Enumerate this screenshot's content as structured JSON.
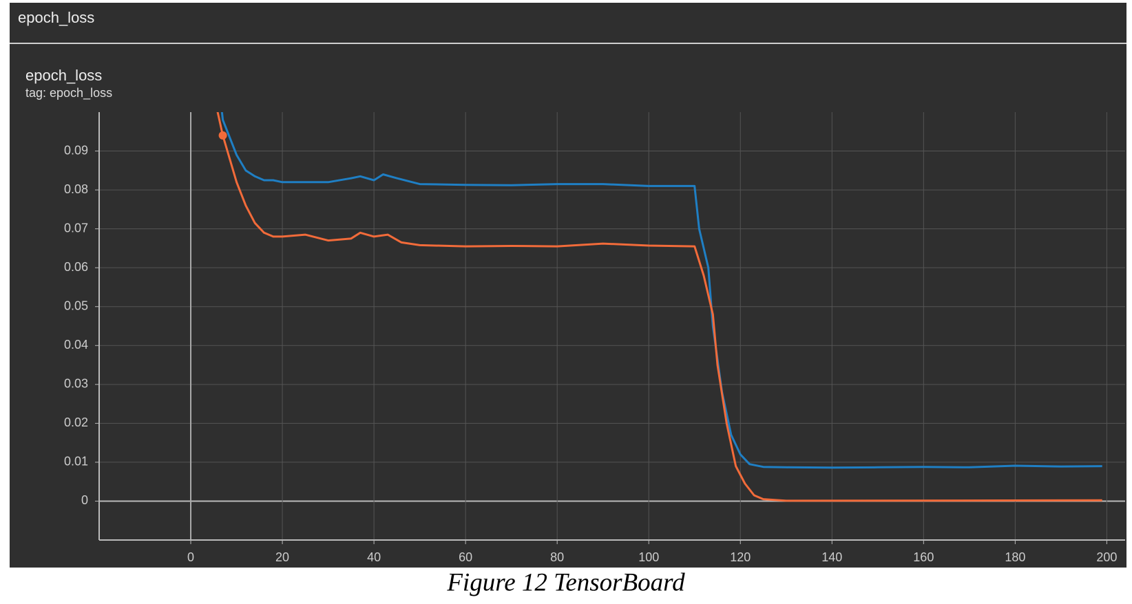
{
  "header": {
    "title": "epoch_loss"
  },
  "chart_data": {
    "type": "line",
    "title": "epoch_loss",
    "subtitle": "tag: epoch_loss",
    "xlim": [
      -20,
      204
    ],
    "ylim": [
      -0.01,
      0.1
    ],
    "xticks": [
      0,
      20,
      40,
      60,
      80,
      100,
      120,
      140,
      160,
      180,
      200
    ],
    "yticks": [
      0,
      0.01,
      0.02,
      0.03,
      0.04,
      0.05,
      0.06,
      0.07,
      0.08,
      0.09
    ],
    "grid": true,
    "series": [
      {
        "color": "#1f7fc4",
        "x": [
          4,
          7,
          10,
          12,
          14,
          16,
          18,
          20,
          25,
          30,
          35,
          37,
          40,
          42,
          45,
          50,
          60,
          70,
          80,
          90,
          100,
          110,
          111,
          113,
          114,
          116,
          118,
          120,
          122,
          125,
          130,
          140,
          150,
          160,
          170,
          180,
          190,
          199
        ],
        "values": [
          0.13,
          0.098,
          0.089,
          0.085,
          0.0835,
          0.0825,
          0.0825,
          0.082,
          0.082,
          0.082,
          0.083,
          0.0835,
          0.0825,
          0.084,
          0.083,
          0.0815,
          0.0813,
          0.0812,
          0.0815,
          0.0815,
          0.081,
          0.081,
          0.07,
          0.06,
          0.045,
          0.028,
          0.017,
          0.012,
          0.0095,
          0.0088,
          0.0087,
          0.0086,
          0.0087,
          0.0088,
          0.0087,
          0.0091,
          0.0089,
          0.009
        ]
      },
      {
        "color": "#f26b3a",
        "x": [
          4,
          7,
          10,
          12,
          14,
          16,
          18,
          20,
          25,
          30,
          35,
          37,
          40,
          43,
          46,
          50,
          60,
          70,
          80,
          90,
          100,
          110,
          112,
          114,
          115,
          117,
          119,
          121,
          123,
          125,
          130,
          199
        ],
        "values": [
          0.11,
          0.094,
          0.082,
          0.076,
          0.0715,
          0.069,
          0.068,
          0.068,
          0.0685,
          0.067,
          0.0675,
          0.069,
          0.068,
          0.0685,
          0.0665,
          0.0658,
          0.0655,
          0.0656,
          0.0655,
          0.0662,
          0.0657,
          0.0655,
          0.058,
          0.048,
          0.035,
          0.02,
          0.009,
          0.0045,
          0.0015,
          0.0005,
          0.0001,
          0.0002
        ],
        "highlight_index": 1
      }
    ]
  },
  "caption": "Figure 12 TensorBoard"
}
